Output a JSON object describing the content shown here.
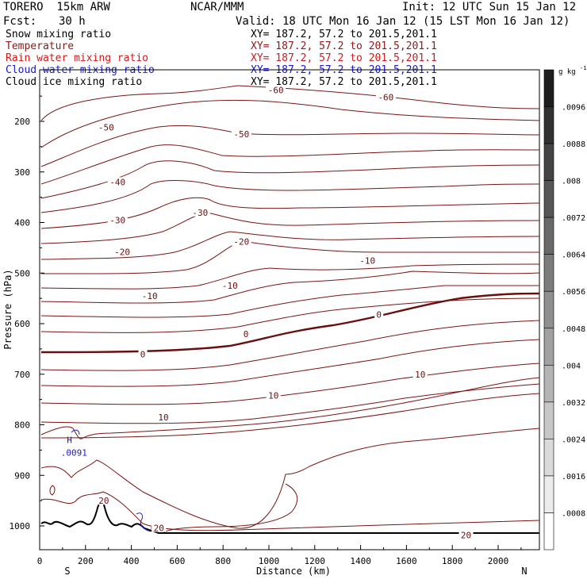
{
  "header": {
    "model": "TORERO  15km ARW",
    "center": "NCAR/MMM",
    "init": "Init: 12 UTC Sun 15 Jan 12",
    "fcst_label": "Fcst:",
    "fcst_value": "30 h",
    "valid": "Valid: 18 UTC Mon 16 Jan 12 (15 LST Mon 16 Jan 12)"
  },
  "legend": [
    {
      "name": "Snow mixing ratio",
      "xy": "XY= 187.2, 57.2 to 201.5,201.1",
      "color": "#000000"
    },
    {
      "name": "Temperature",
      "xy": "XY= 187.2, 57.2 to 201.5,201.1",
      "color": "#8b1a1a"
    },
    {
      "name": "Rain water mixing ratio",
      "xy": "XY= 187.2, 57.2 to 201.5,201.1",
      "color": "#d11a1a"
    },
    {
      "name": "Cloud water mixing ratio",
      "xy": "XY= 187.2, 57.2 to 201.5,201.1",
      "color": "#1a1acc"
    },
    {
      "name": "Cloud ice mixing ratio",
      "xy": "XY= 187.2, 57.2 to 201.5,201.1",
      "color": "#000000"
    }
  ],
  "chart_data": {
    "type": "contour cross-section",
    "xlabel": "Distance (km)",
    "ylabel": "Pressure (hPa)",
    "x_ticks": [
      0,
      200,
      400,
      600,
      800,
      1000,
      1200,
      1400,
      1600,
      1800,
      2000
    ],
    "y_ticks": [
      200,
      300,
      400,
      500,
      600,
      700,
      800,
      900,
      1000
    ],
    "xlim": [
      0,
      2180
    ],
    "ylim": [
      1050,
      100
    ],
    "endpoints": {
      "left": "S",
      "right": "N"
    },
    "temperature_labels": [
      {
        "x": 1030,
        "p": 138,
        "text": "-60"
      },
      {
        "x": 1510,
        "p": 152,
        "text": "-60"
      },
      {
        "x": 290,
        "p": 212,
        "text": "-50"
      },
      {
        "x": 880,
        "p": 225,
        "text": "-50"
      },
      {
        "x": 340,
        "p": 320,
        "text": "-40"
      },
      {
        "x": 700,
        "p": 380,
        "text": "-30"
      },
      {
        "x": 340,
        "p": 395,
        "text": "-30"
      },
      {
        "x": 880,
        "p": 438,
        "text": "-20"
      },
      {
        "x": 360,
        "p": 458,
        "text": "-20"
      },
      {
        "x": 1430,
        "p": 475,
        "text": "-10"
      },
      {
        "x": 830,
        "p": 525,
        "text": "-10"
      },
      {
        "x": 480,
        "p": 545,
        "text": "-10"
      },
      {
        "x": 1480,
        "p": 582,
        "text": "0"
      },
      {
        "x": 900,
        "p": 620,
        "text": "0"
      },
      {
        "x": 450,
        "p": 660,
        "text": "0"
      },
      {
        "x": 1660,
        "p": 700,
        "text": "10"
      },
      {
        "x": 1020,
        "p": 742,
        "text": "10"
      },
      {
        "x": 540,
        "p": 785,
        "text": "10"
      },
      {
        "x": 280,
        "p": 950,
        "text": "20"
      },
      {
        "x": 520,
        "p": 1004,
        "text": "20"
      },
      {
        "x": 1860,
        "p": 1018,
        "text": "20"
      }
    ],
    "temperature_levels": [
      -60,
      -50,
      -40,
      -30,
      -20,
      -10,
      0,
      10,
      20
    ],
    "other_labels": [
      {
        "x": 130,
        "p": 830,
        "text": "H",
        "series": "cloud water"
      },
      {
        "x": 150,
        "p": 855,
        "text": ".0091",
        "series": "cloud water"
      }
    ],
    "colorbar": {
      "unit": "g kg",
      "unit_exp": "-1",
      "ticks": [
        ".0096",
        ".0088",
        ".008",
        ".0072",
        ".0064",
        ".0056",
        ".0048",
        ".004",
        ".0032",
        ".0024",
        ".0016",
        ".0008"
      ]
    }
  }
}
